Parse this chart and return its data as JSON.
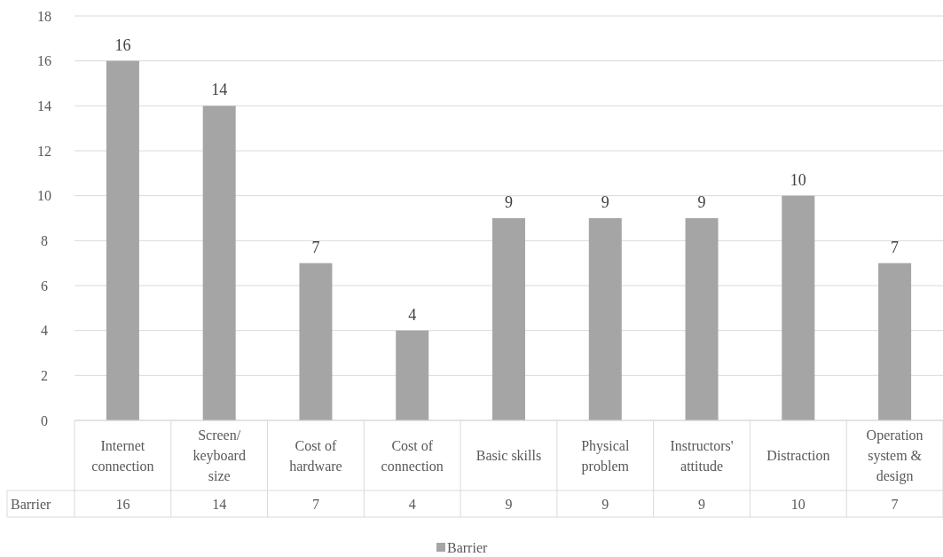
{
  "chart_data": {
    "type": "bar",
    "categories": [
      "Internet connection",
      "Screen/keyboard size",
      "Cost of hardware",
      "Cost of connection",
      "Basic skills",
      "Physical problem",
      "Instructors' attitude",
      "Distraction",
      "Operation system & design"
    ],
    "series": [
      {
        "name": "Barrier",
        "color": "#a5a5a5",
        "values": [
          16,
          14,
          7,
          4,
          9,
          9,
          9,
          10,
          7
        ],
        "value_labels": [
          "16",
          "14",
          "7",
          "4",
          "9",
          "9",
          "9",
          "10",
          "7"
        ]
      }
    ],
    "annotations": [
      "16",
      "14",
      "7",
      "4",
      "9",
      "9",
      "9",
      "10",
      "7"
    ],
    "ylim": [
      0,
      18
    ],
    "yticks": [
      0,
      2,
      4,
      6,
      8,
      10,
      12,
      14,
      16,
      18
    ],
    "grid": "y",
    "legend": "bottom"
  }
}
